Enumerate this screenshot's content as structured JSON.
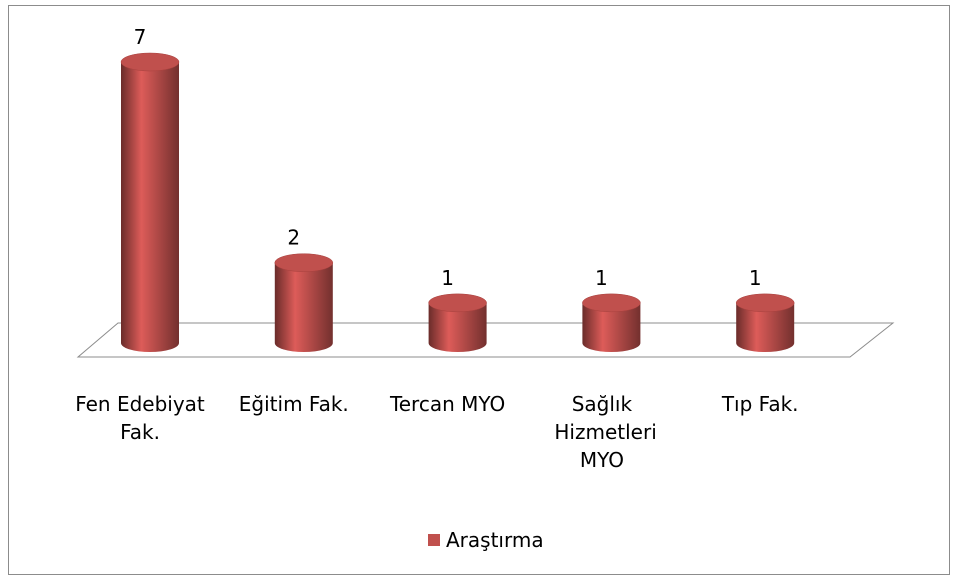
{
  "chart_data": {
    "type": "bar3d",
    "categories": [
      "Fen Edebiyat Fak.",
      "Eğitim Fak.",
      "Tercan MYO",
      "Sağlık Hizmetleri MYO",
      "Tıp Fak."
    ],
    "series": [
      {
        "name": "Araştırma",
        "color": "#c0504d",
        "values": [
          7,
          2,
          1,
          1,
          1
        ]
      }
    ],
    "legend": "bottom"
  }
}
